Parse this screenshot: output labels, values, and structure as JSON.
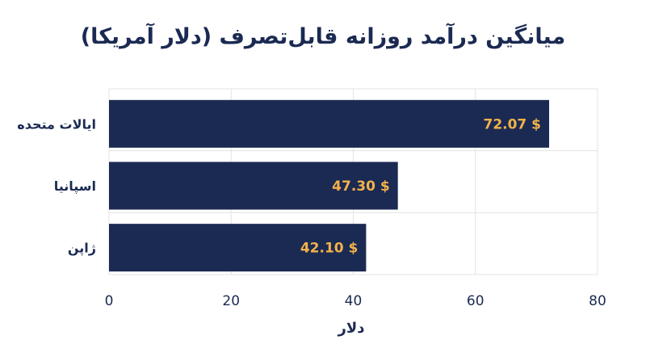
{
  "chart_data": {
    "type": "bar",
    "orientation": "horizontal",
    "title": "میانگین درآمد روزانه قابل‌تصرف (دلار آمریکا)",
    "xlabel": "دلار",
    "ylabel": "",
    "categories": [
      "ایالات متحده",
      "اسپانیا",
      "ژاپن"
    ],
    "values": [
      72.07,
      47.3,
      42.1
    ],
    "value_labels": [
      "72.07 $",
      "47.30 $",
      "42.10 $"
    ],
    "xlim": [
      0,
      80
    ],
    "xticks": [
      0,
      20,
      40,
      60,
      80
    ],
    "grid": true,
    "colors": {
      "bar": "#1b2a52",
      "value_label": "#f2b24a",
      "text": "#1b2a52",
      "grid": "#e3e3e3"
    }
  }
}
